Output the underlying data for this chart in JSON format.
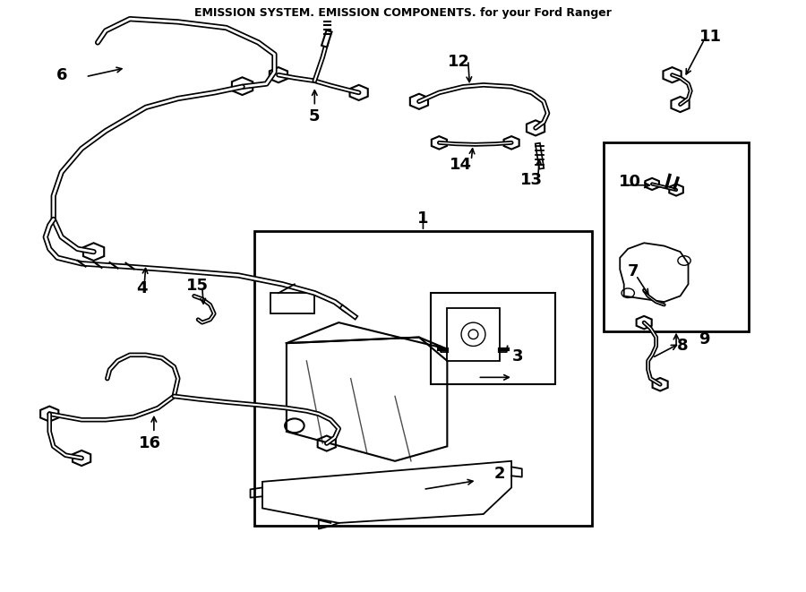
{
  "title": "EMISSION SYSTEM. EMISSION COMPONENTS. for your Ford Ranger",
  "bg_color": "#ffffff",
  "line_color": "#000000",
  "label_fontsize": 13,
  "title_fontsize": 9,
  "fig_width": 9.0,
  "fig_height": 6.61,
  "dpi": 100
}
